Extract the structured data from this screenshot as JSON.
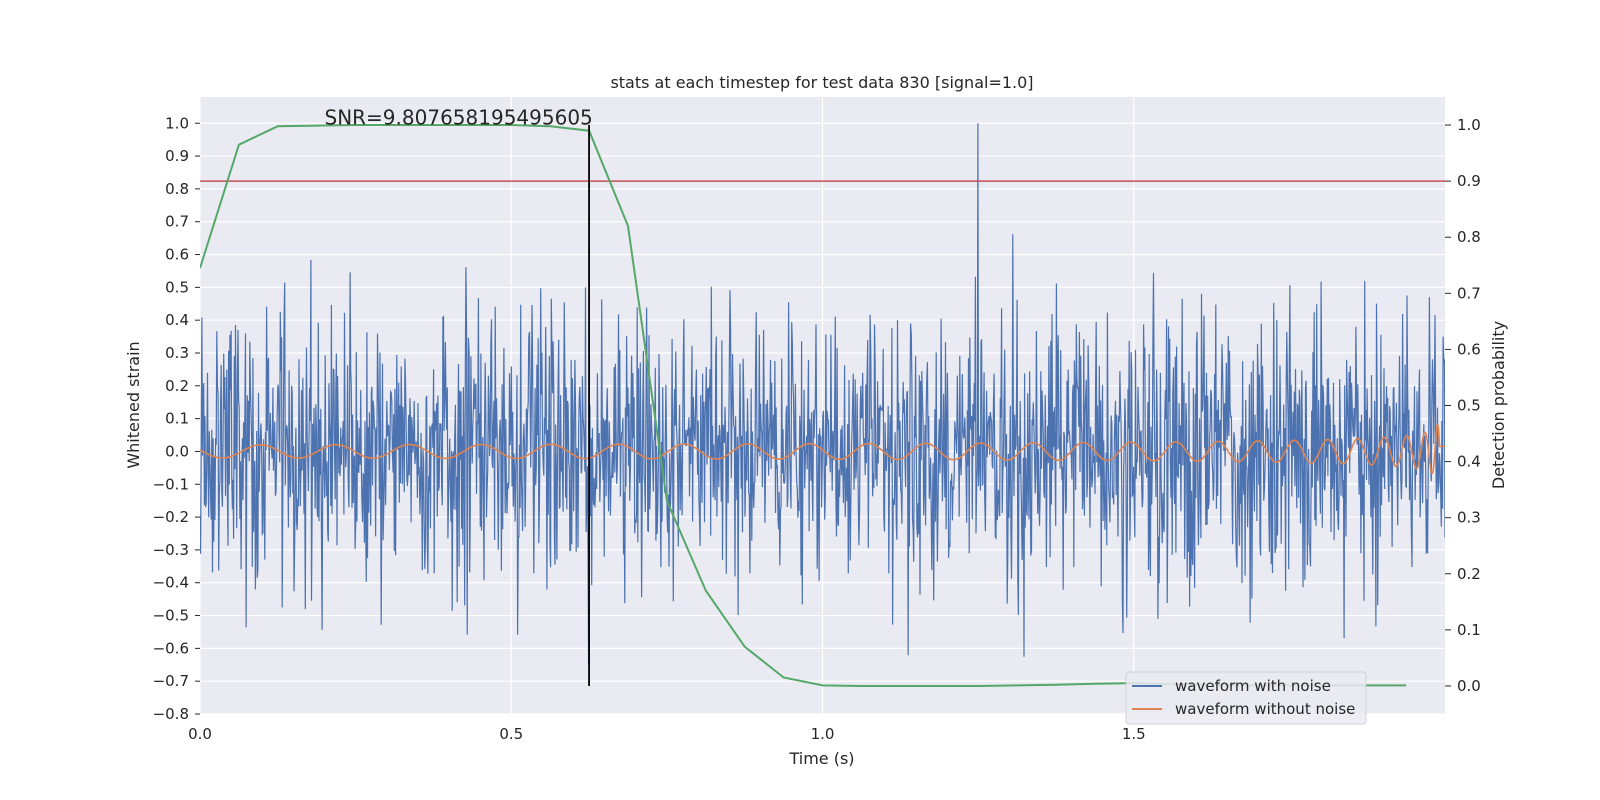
{
  "chart_data": {
    "type": "line",
    "title": "stats at each timestep for test data 830 [signal=1.0]",
    "xlabel": "Time (s)",
    "ylabel_left": "Whitened strain",
    "ylabel_right": "Detection probability",
    "xlim": [
      0.0,
      2.0
    ],
    "ylim_left": [
      -0.8,
      1.08
    ],
    "ylim_right": [
      -0.05,
      1.05
    ],
    "x_ticks": [
      0.0,
      0.5,
      1.0,
      1.5
    ],
    "x_tick_labels": [
      "0.0",
      "0.5",
      "1.0",
      "1.5"
    ],
    "y_left_ticks": [
      -0.8,
      -0.7,
      -0.6,
      -0.5,
      -0.4,
      -0.3,
      -0.2,
      -0.1,
      0.0,
      0.1,
      0.2,
      0.3,
      0.4,
      0.5,
      0.6,
      0.7,
      0.8,
      0.9,
      1.0
    ],
    "y_left_tick_labels": [
      "−0.8",
      "−0.7",
      "−0.6",
      "−0.5",
      "−0.4",
      "−0.3",
      "−0.2",
      "−0.1",
      "0.0",
      "0.1",
      "0.2",
      "0.3",
      "0.4",
      "0.5",
      "0.6",
      "0.7",
      "0.8",
      "0.9",
      "1.0"
    ],
    "y_right_ticks": [
      0.0,
      0.1,
      0.2,
      0.3,
      0.4,
      0.5,
      0.6,
      0.7,
      0.8,
      0.9,
      1.0
    ],
    "y_right_tick_labels": [
      "0.0",
      "0.1",
      "0.2",
      "0.3",
      "0.4",
      "0.5",
      "0.6",
      "0.7",
      "0.8",
      "0.9",
      "1.0"
    ],
    "grid": true,
    "annotation": "SNR=9.807658195495605",
    "annotation_x": 0.2,
    "annotation_y_left": 1.0,
    "threshold_right": 0.9,
    "vline_x": 0.625,
    "vline_right_range": [
      0.0,
      1.0
    ],
    "noisy_waveform": {
      "name": "waveform with noise",
      "color": "#4c72b0",
      "n_samples": 2000,
      "amplitude_std": 0.2,
      "peak_t": 1.25,
      "peak_value": 1.0
    },
    "clean_waveform": {
      "name": "waveform without noise",
      "color": "#dd8452",
      "t_merger": 1.995,
      "f0_hz": 8.0,
      "base_amplitude": 0.02,
      "offset": 0.0
    },
    "detection_probability": {
      "name": "detection probability",
      "color": "#55a868",
      "x": [
        0.0,
        0.0625,
        0.125,
        0.1875,
        0.25,
        0.3125,
        0.375,
        0.4375,
        0.5,
        0.5625,
        0.625,
        0.6875,
        0.75,
        0.8125,
        0.875,
        0.9375,
        1.0,
        1.0625,
        1.125,
        1.1875,
        1.25,
        1.3125,
        1.375,
        1.4375,
        1.5,
        1.5625,
        1.625,
        1.6875,
        1.75,
        1.8125,
        1.875,
        1.9375
      ],
      "y": [
        0.745,
        0.965,
        0.998,
        0.999,
        1.0,
        1.0,
        1.0,
        1.0,
        1.0,
        0.998,
        0.99,
        0.82,
        0.33,
        0.17,
        0.07,
        0.015,
        0.001,
        0.0,
        0.0,
        0.0,
        0.0,
        0.001,
        0.002,
        0.004,
        0.005,
        0.003,
        0.002,
        0.001,
        0.001,
        0.001,
        0.001,
        0.001
      ]
    },
    "threshold_color": "#c44e52",
    "legend": {
      "location": "lower-right",
      "entries": [
        {
          "label": "waveform with noise",
          "color": "#4c72b0"
        },
        {
          "label": "waveform without noise",
          "color": "#dd8452"
        }
      ]
    },
    "colors": {
      "plot_background": "#eaeaf2",
      "grid": "#ffffff",
      "vline": "#000000"
    }
  }
}
